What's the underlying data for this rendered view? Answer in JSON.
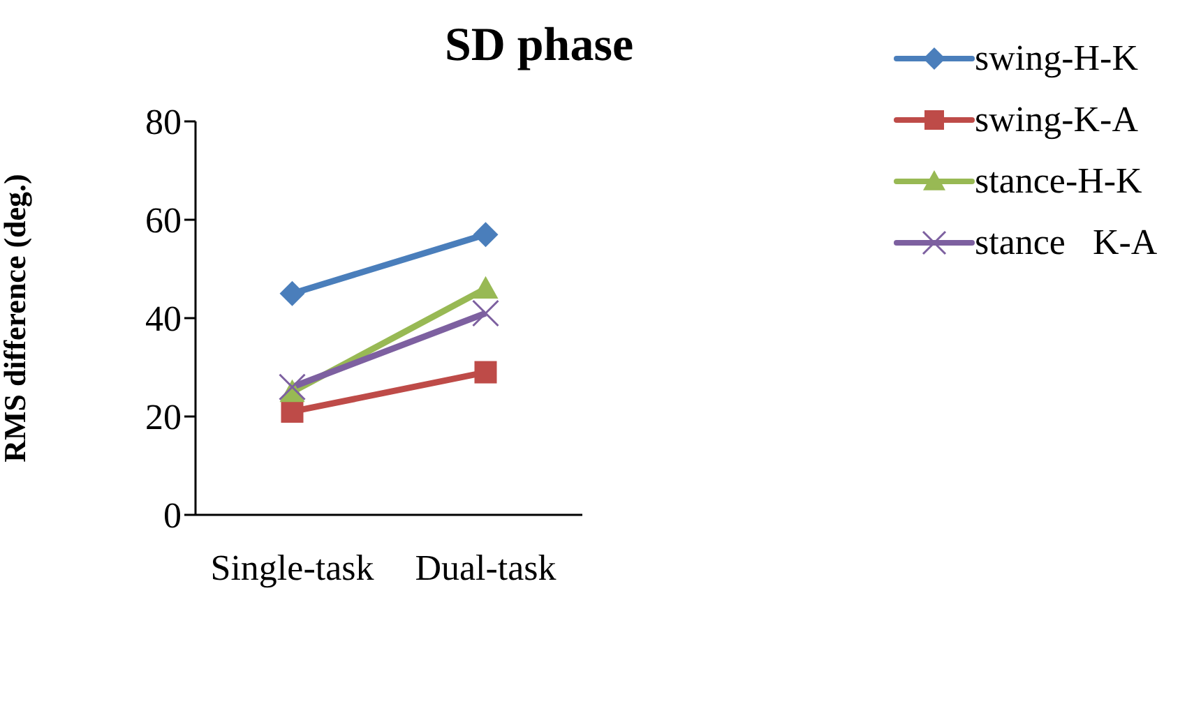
{
  "chart_data": {
    "type": "line",
    "title": "SD phase",
    "ylabel": "RMS difference (deg.)",
    "categories": [
      "Single-task",
      "Dual-task"
    ],
    "series": [
      {
        "name": "swing-H-K",
        "color": "#4a7ebb",
        "marker": "diamond",
        "values": [
          45,
          57
        ]
      },
      {
        "name": "swing-K-A",
        "color": "#be4b48",
        "marker": "square",
        "values": [
          21,
          29
        ]
      },
      {
        "name": "stance-H-K",
        "color": "#98b954",
        "marker": "triangle",
        "values": [
          25,
          46
        ]
      },
      {
        "name": "stance   K-A",
        "color": "#7d60a0",
        "marker": "cross",
        "values": [
          26,
          41
        ]
      }
    ],
    "ylim": [
      0,
      80
    ],
    "yticks": [
      0,
      20,
      40,
      60,
      80
    ],
    "grid": false,
    "legend": "top right"
  }
}
